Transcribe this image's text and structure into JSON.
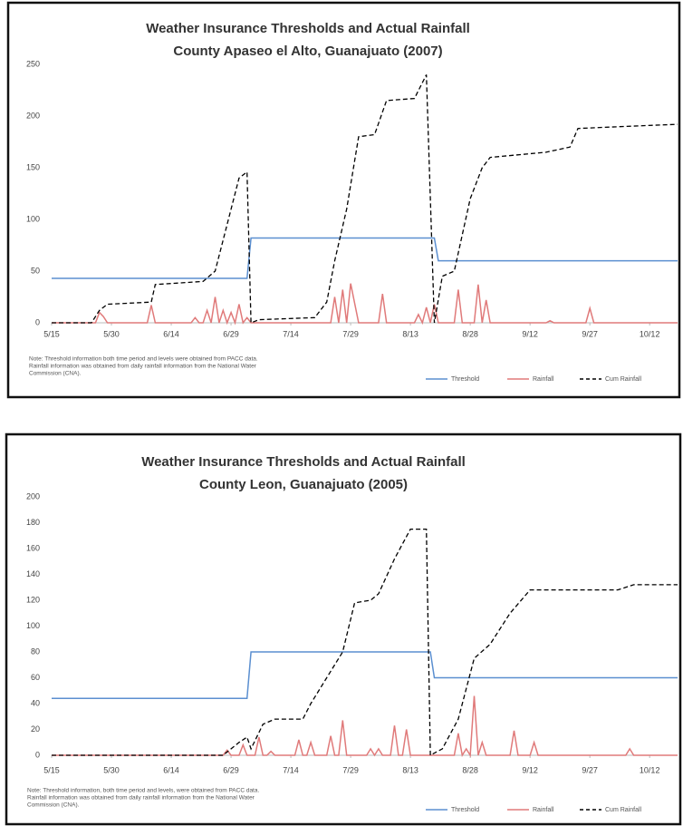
{
  "chart_data": [
    {
      "type": "line",
      "title": "Weather Insurance Thresholds and Actual Rainfall",
      "subtitle": "County Apaseo el Alto, Guanajuato (2007)",
      "xlim": [
        "5/15",
        "10/19"
      ],
      "xticks": [
        "5/15",
        "5/30",
        "6/14",
        "6/29",
        "7/14",
        "7/29",
        "8/13",
        "8/28",
        "9/12",
        "9/27",
        "10/12"
      ],
      "ylim": [
        0,
        250
      ],
      "yticks": [
        0,
        50,
        100,
        150,
        200,
        250
      ],
      "note": [
        "Note: Threshold information both time period and levels were obtained from PACC data.",
        "Rainfall information was obtained from daily rainfall information from the National Water",
        "Commission (CNA)."
      ],
      "legend": "bottom-right",
      "series": [
        {
          "name": "Threshold",
          "color": "#5b8fd0",
          "dash": false,
          "x": [
            "5/15",
            "7/3",
            "7/4",
            "8/19",
            "8/20",
            "10/19"
          ],
          "values": [
            43,
            43,
            82,
            82,
            60,
            60
          ]
        },
        {
          "name": "Rainfall",
          "color": "#e07a7a",
          "dash": false,
          "x": [
            "5/15",
            "5/26",
            "5/27",
            "5/28",
            "5/29",
            "6/8",
            "6/9",
            "6/10",
            "6/19",
            "6/20",
            "6/21",
            "6/22",
            "6/23",
            "6/24",
            "6/25",
            "6/26",
            "6/27",
            "6/28",
            "6/29",
            "6/30",
            "7/1",
            "7/2",
            "7/3",
            "7/4",
            "7/24",
            "7/25",
            "7/26",
            "7/27",
            "7/28",
            "7/29",
            "7/31",
            "8/5",
            "8/6",
            "8/7",
            "8/14",
            "8/15",
            "8/16",
            "8/17",
            "8/18",
            "8/19",
            "8/20",
            "8/24",
            "8/25",
            "8/26",
            "8/29",
            "8/30",
            "8/31",
            "9/1",
            "9/2",
            "9/16",
            "9/17",
            "9/18",
            "9/26",
            "9/27",
            "9/28",
            "10/19"
          ],
          "values": [
            0,
            0,
            10,
            6,
            0,
            0,
            17,
            0,
            0,
            5,
            0,
            0,
            12,
            0,
            25,
            0,
            12,
            0,
            10,
            0,
            18,
            0,
            5,
            0,
            0,
            25,
            0,
            32,
            0,
            38,
            0,
            0,
            28,
            0,
            0,
            8,
            0,
            15,
            0,
            18,
            0,
            0,
            32,
            0,
            0,
            37,
            0,
            22,
            0,
            0,
            2,
            0,
            0,
            14,
            0,
            0
          ]
        },
        {
          "name": "Cum Rainfall",
          "color": "#000000",
          "dash": true,
          "x": [
            "5/15",
            "5/25",
            "5/27",
            "5/29",
            "6/9",
            "6/10",
            "6/22",
            "6/25",
            "6/27",
            "6/29",
            "7/1",
            "7/3",
            "7/4",
            "7/6",
            "7/20",
            "7/23",
            "7/25",
            "7/28",
            "7/31",
            "8/4",
            "8/7",
            "8/14",
            "8/17",
            "8/19",
            "8/21",
            "8/24",
            "8/26",
            "8/28",
            "8/31",
            "9/2",
            "9/16",
            "9/22",
            "9/24",
            "10/6",
            "10/19"
          ],
          "values": [
            0,
            0,
            12,
            18,
            20,
            37,
            40,
            50,
            80,
            110,
            140,
            146,
            0,
            3,
            5,
            20,
            60,
            110,
            180,
            182,
            215,
            217,
            240,
            0,
            45,
            50,
            85,
            120,
            150,
            160,
            165,
            170,
            188,
            190,
            192
          ]
        }
      ]
    },
    {
      "type": "line",
      "title": "Weather Insurance Thresholds and Actual Rainfall",
      "subtitle": "County Leon, Guanajuato (2005)",
      "xlim": [
        "5/15",
        "10/19"
      ],
      "xticks": [
        "5/15",
        "5/30",
        "6/14",
        "6/29",
        "7/14",
        "7/29",
        "8/13",
        "8/28",
        "9/12",
        "9/27",
        "10/12"
      ],
      "ylim": [
        0,
        200
      ],
      "yticks": [
        0,
        20,
        40,
        60,
        80,
        100,
        120,
        140,
        160,
        180,
        200
      ],
      "note": [
        "Note: Threshold information, both time period and levels, were obtained from PACC data.",
        "Rainfall information was obtained from daily rainfall information from the National Water",
        "Commission (CNA)."
      ],
      "legend": "bottom-right",
      "series": [
        {
          "name": "Threshold",
          "color": "#5b8fd0",
          "dash": false,
          "x": [
            "5/15",
            "7/3",
            "7/4",
            "8/18",
            "8/19",
            "10/19"
          ],
          "values": [
            44,
            44,
            80,
            80,
            60,
            60
          ]
        },
        {
          "name": "Rainfall",
          "color": "#e07a7a",
          "dash": false,
          "x": [
            "5/15",
            "6/27",
            "6/28",
            "6/29",
            "7/1",
            "7/2",
            "7/3",
            "7/5",
            "7/6",
            "7/7",
            "7/8",
            "7/9",
            "7/10",
            "7/15",
            "7/16",
            "7/17",
            "7/18",
            "7/19",
            "7/20",
            "7/23",
            "7/24",
            "7/25",
            "7/26",
            "7/27",
            "7/28",
            "8/2",
            "8/3",
            "8/4",
            "8/5",
            "8/6",
            "8/8",
            "8/9",
            "8/10",
            "8/11",
            "8/12",
            "8/13",
            "8/24",
            "8/25",
            "8/26",
            "8/27",
            "8/28",
            "8/29",
            "8/30",
            "8/31",
            "9/1",
            "9/7",
            "9/8",
            "9/9",
            "9/12",
            "9/13",
            "9/14",
            "10/6",
            "10/7",
            "10/8",
            "10/19"
          ],
          "values": [
            0,
            0,
            4,
            0,
            0,
            8,
            0,
            0,
            14,
            0,
            0,
            3,
            0,
            0,
            12,
            0,
            0,
            10,
            0,
            0,
            15,
            0,
            0,
            27,
            0,
            0,
            5,
            0,
            5,
            0,
            0,
            23,
            0,
            0,
            20,
            0,
            0,
            17,
            0,
            5,
            0,
            46,
            0,
            10,
            0,
            0,
            19,
            0,
            0,
            10,
            0,
            0,
            5,
            0,
            0
          ]
        },
        {
          "name": "Cum Rainfall",
          "color": "#000000",
          "dash": true,
          "x": [
            "5/15",
            "6/27",
            "7/1",
            "7/3",
            "7/4",
            "7/7",
            "7/10",
            "7/17",
            "7/19",
            "7/22",
            "7/27",
            "7/30",
            "8/3",
            "8/5",
            "8/9",
            "8/13",
            "8/17",
            "8/18",
            "8/21",
            "8/25",
            "8/29",
            "9/2",
            "9/7",
            "9/12",
            "10/4",
            "10/8",
            "10/19"
          ],
          "values": [
            0,
            0,
            10,
            14,
            5,
            24,
            28,
            28,
            40,
            55,
            80,
            118,
            120,
            125,
            152,
            175,
            175,
            0,
            5,
            28,
            75,
            86,
            110,
            128,
            128,
            132,
            132
          ]
        }
      ]
    }
  ]
}
